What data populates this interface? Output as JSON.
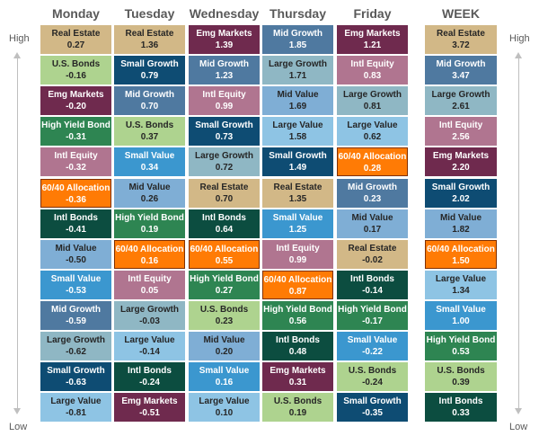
{
  "labels": {
    "high": "High",
    "low": "Low"
  },
  "colors": {
    "Real Estate": "#d2b887",
    "U.S. Bonds": "#aed38f",
    "Emg Markets": "#6f2a4e",
    "High Yield Bond": "#2e8552",
    "Intl Equity": "#b07590",
    "60/40 Allocation": "#ff7b05",
    "Intl Bonds": "#0c4d40",
    "Mid Value": "#7faed5",
    "Small Value": "#3b97cf",
    "Mid Growth": "#4f79a0",
    "Large Growth": "#8fb7c4",
    "Small Growth": "#0e4c73",
    "Large Value": "#8ec4e4"
  },
  "chart_data": {
    "type": "table",
    "days": [
      {
        "name": "Monday",
        "cells": [
          {
            "label": "Real Estate",
            "value": "0.27"
          },
          {
            "label": "U.S. Bonds",
            "value": "-0.16"
          },
          {
            "label": "Emg Markets",
            "value": "-0.20"
          },
          {
            "label": "High Yield Bond",
            "value": "-0.31"
          },
          {
            "label": "Intl Equity",
            "value": "-0.32"
          },
          {
            "label": "60/40 Allocation",
            "value": "-0.36"
          },
          {
            "label": "Intl Bonds",
            "value": "-0.41"
          },
          {
            "label": "Mid Value",
            "value": "-0.50"
          },
          {
            "label": "Small Value",
            "value": "-0.53"
          },
          {
            "label": "Mid Growth",
            "value": "-0.59"
          },
          {
            "label": "Large Growth",
            "value": "-0.62"
          },
          {
            "label": "Small Growth",
            "value": "-0.63"
          },
          {
            "label": "Large Value",
            "value": "-0.81"
          }
        ]
      },
      {
        "name": "Tuesday",
        "cells": [
          {
            "label": "Real Estate",
            "value": "1.36"
          },
          {
            "label": "Small Growth",
            "value": "0.79"
          },
          {
            "label": "Mid Growth",
            "value": "0.70"
          },
          {
            "label": "U.S. Bonds",
            "value": "0.37"
          },
          {
            "label": "Small Value",
            "value": "0.34"
          },
          {
            "label": "Mid Value",
            "value": "0.26"
          },
          {
            "label": "High Yield Bond",
            "value": "0.19"
          },
          {
            "label": "60/40 Allocation",
            "value": "0.16"
          },
          {
            "label": "Intl Equity",
            "value": "0.05"
          },
          {
            "label": "Large Growth",
            "value": "-0.03"
          },
          {
            "label": "Large Value",
            "value": "-0.14"
          },
          {
            "label": "Intl Bonds",
            "value": "-0.24"
          },
          {
            "label": "Emg Markets",
            "value": "-0.51"
          }
        ]
      },
      {
        "name": "Wednesday",
        "cells": [
          {
            "label": "Emg Markets",
            "value": "1.39"
          },
          {
            "label": "Mid Growth",
            "value": "1.23"
          },
          {
            "label": "Intl Equity",
            "value": "0.99"
          },
          {
            "label": "Small Growth",
            "value": "0.73"
          },
          {
            "label": "Large Growth",
            "value": "0.72"
          },
          {
            "label": "Real Estate",
            "value": "0.70"
          },
          {
            "label": "Intl Bonds",
            "value": "0.64"
          },
          {
            "label": "60/40 Allocation",
            "value": "0.55"
          },
          {
            "label": "High Yield Bond",
            "value": "0.27"
          },
          {
            "label": "U.S. Bonds",
            "value": "0.23"
          },
          {
            "label": "Mid Value",
            "value": "0.20"
          },
          {
            "label": "Small Value",
            "value": "0.16"
          },
          {
            "label": "Large Value",
            "value": "0.10"
          }
        ]
      },
      {
        "name": "Thursday",
        "cells": [
          {
            "label": "Mid Growth",
            "value": "1.85"
          },
          {
            "label": "Large Growth",
            "value": "1.71"
          },
          {
            "label": "Mid Value",
            "value": "1.69"
          },
          {
            "label": "Large Value",
            "value": "1.58"
          },
          {
            "label": "Small Growth",
            "value": "1.49"
          },
          {
            "label": "Real Estate",
            "value": "1.35"
          },
          {
            "label": "Small Value",
            "value": "1.25"
          },
          {
            "label": "Intl Equity",
            "value": "0.99"
          },
          {
            "label": "60/40 Allocation",
            "value": "0.87"
          },
          {
            "label": "High Yield Bond",
            "value": "0.56"
          },
          {
            "label": "Intl Bonds",
            "value": "0.48"
          },
          {
            "label": "Emg Markets",
            "value": "0.31"
          },
          {
            "label": "U.S. Bonds",
            "value": "0.19"
          }
        ]
      },
      {
        "name": "Friday",
        "cells": [
          {
            "label": "Emg Markets",
            "value": "1.21"
          },
          {
            "label": "Intl Equity",
            "value": "0.83"
          },
          {
            "label": "Large Growth",
            "value": "0.81"
          },
          {
            "label": "Large Value",
            "value": "0.62"
          },
          {
            "label": "60/40 Allocation",
            "value": "0.28"
          },
          {
            "label": "Mid Growth",
            "value": "0.23"
          },
          {
            "label": "Mid Value",
            "value": "0.17"
          },
          {
            "label": "Real Estate",
            "value": "-0.02"
          },
          {
            "label": "Intl Bonds",
            "value": "-0.14"
          },
          {
            "label": "High Yield Bond",
            "value": "-0.17"
          },
          {
            "label": "Small Value",
            "value": "-0.22"
          },
          {
            "label": "U.S. Bonds",
            "value": "-0.24"
          },
          {
            "label": "Small Growth",
            "value": "-0.35"
          }
        ]
      },
      {
        "name": "WEEK",
        "cells": [
          {
            "label": "Real Estate",
            "value": "3.72"
          },
          {
            "label": "Mid Growth",
            "value": "3.47"
          },
          {
            "label": "Large Growth",
            "value": "2.61"
          },
          {
            "label": "Intl Equity",
            "value": "2.56"
          },
          {
            "label": "Emg Markets",
            "value": "2.20"
          },
          {
            "label": "Small Growth",
            "value": "2.02"
          },
          {
            "label": "Mid Value",
            "value": "1.82"
          },
          {
            "label": "60/40 Allocation",
            "value": "1.50"
          },
          {
            "label": "Large Value",
            "value": "1.34"
          },
          {
            "label": "Small Value",
            "value": "1.00"
          },
          {
            "label": "High Yield Bond",
            "value": "0.53"
          },
          {
            "label": "U.S. Bonds",
            "value": "0.39"
          },
          {
            "label": "Intl Bonds",
            "value": "0.33"
          }
        ]
      }
    ]
  }
}
